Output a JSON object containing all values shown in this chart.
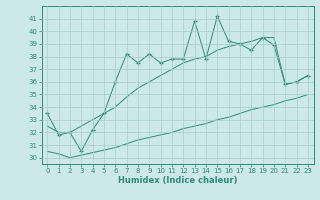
{
  "xlabel": "Humidex (Indice chaleur)",
  "x_values": [
    0,
    1,
    2,
    3,
    4,
    5,
    6,
    7,
    8,
    9,
    10,
    11,
    12,
    13,
    14,
    15,
    16,
    17,
    18,
    19,
    20,
    21,
    22,
    23
  ],
  "main_line": [
    33.5,
    31.8,
    32.0,
    30.5,
    32.2,
    33.5,
    36.0,
    38.2,
    37.5,
    38.2,
    37.5,
    37.8,
    37.8,
    40.8,
    37.8,
    41.2,
    39.2,
    39.0,
    38.5,
    39.5,
    38.9,
    35.8,
    36.0,
    36.5
  ],
  "upper_line": [
    32.5,
    32.0,
    32.0,
    32.5,
    33.0,
    33.5,
    34.0,
    34.8,
    35.5,
    36.0,
    36.5,
    37.0,
    37.5,
    37.8,
    38.0,
    38.5,
    38.8,
    39.0,
    39.2,
    39.5,
    39.5,
    35.8,
    36.0,
    36.5
  ],
  "lower_line": [
    30.5,
    30.3,
    30.0,
    30.2,
    30.4,
    30.6,
    30.8,
    31.1,
    31.4,
    31.6,
    31.8,
    32.0,
    32.3,
    32.5,
    32.7,
    33.0,
    33.2,
    33.5,
    33.8,
    34.0,
    34.2,
    34.5,
    34.7,
    35.0
  ],
  "line_color": "#2e8b7a",
  "bg_color": "#cce8e8",
  "grid_color": "#a8cccc",
  "ylim": [
    29.5,
    42
  ],
  "xlim": [
    -0.5,
    23.5
  ],
  "yticks": [
    30,
    31,
    32,
    33,
    34,
    35,
    36,
    37,
    38,
    39,
    40,
    41
  ],
  "xticks": [
    0,
    1,
    2,
    3,
    4,
    5,
    6,
    7,
    8,
    9,
    10,
    11,
    12,
    13,
    14,
    15,
    16,
    17,
    18,
    19,
    20,
    21,
    22,
    23
  ]
}
